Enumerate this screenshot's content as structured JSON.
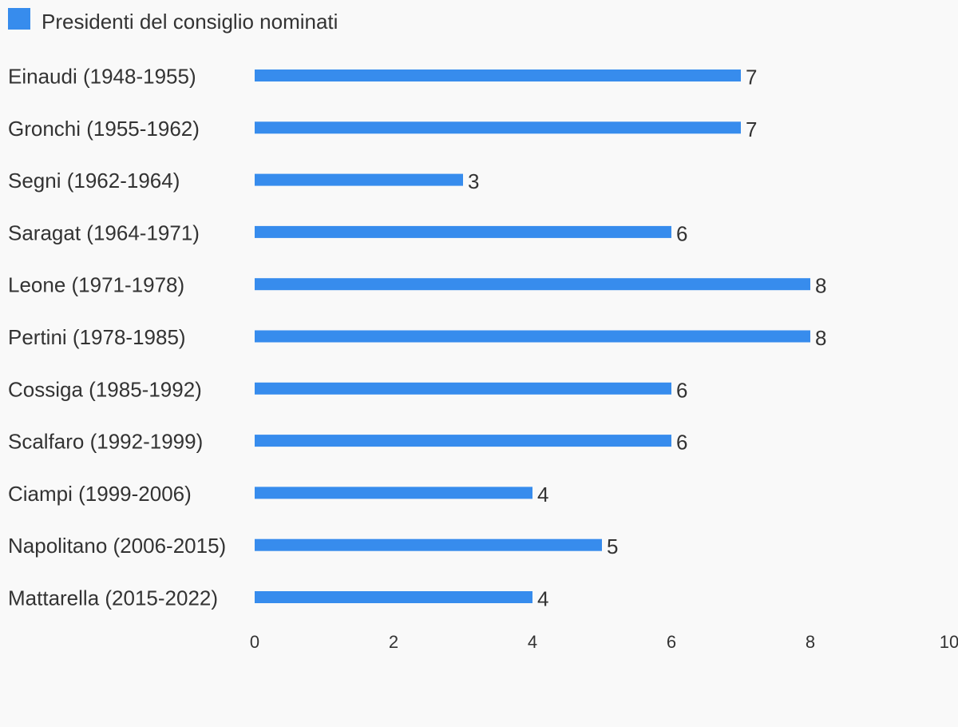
{
  "chart_data": {
    "type": "bar",
    "orientation": "horizontal",
    "categories": [
      "Einaudi (1948-1955)",
      "Gronchi (1955-1962)",
      "Segni (1962-1964)",
      "Saragat (1964-1971)",
      "Leone (1971-1978)",
      "Pertini (1978-1985)",
      "Cossiga (1985-1992)",
      "Scalfaro (1992-1999)",
      "Ciampi (1999-2006)",
      "Napolitano (2006-2015)",
      "Mattarella (2015-2022)"
    ],
    "series": [
      {
        "name": "Presidenti del consiglio nominati",
        "values": [
          7,
          7,
          3,
          6,
          8,
          8,
          6,
          6,
          4,
          5,
          4
        ],
        "color": "#378ced"
      }
    ],
    "xlim": [
      0,
      10
    ],
    "xticks": [
      "0",
      "2",
      "4",
      "6",
      "8",
      "10"
    ],
    "grid": false,
    "legend_position": "top-left",
    "data_labels": true
  }
}
